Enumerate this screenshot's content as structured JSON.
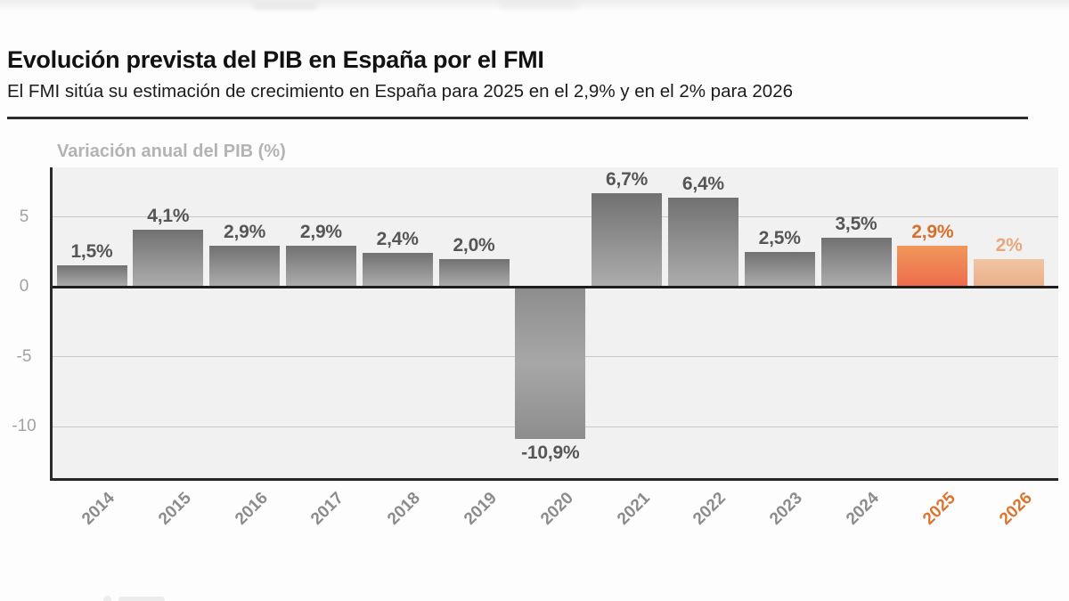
{
  "header": {
    "title": "Evolución prevista del PIB en España por el FMI",
    "subtitle": "El FMI sitúa su estimación de crecimiento en España para 2025 en el 2,9% y en el 2% para 2026"
  },
  "chart_data": {
    "type": "bar",
    "axis_title": "Variación anual del PIB (%)",
    "categories": [
      "2014",
      "2015",
      "2016",
      "2017",
      "2018",
      "2019",
      "2020",
      "2021",
      "2022",
      "2023",
      "2024",
      "2025",
      "2026"
    ],
    "values": [
      1.5,
      4.1,
      2.9,
      2.9,
      2.4,
      2.0,
      -10.9,
      6.7,
      6.4,
      2.5,
      3.5,
      2.9,
      2.0
    ],
    "value_labels": [
      "1,5%",
      "4,1%",
      "2,9%",
      "2,9%",
      "2,4%",
      "2,0%",
      "-10,9%",
      "6,7%",
      "6,4%",
      "2,5%",
      "3,5%",
      "2,9%",
      "2%"
    ],
    "forecast_years": [
      "2025",
      "2026"
    ],
    "y_ticks": [
      5,
      0,
      -5,
      -10
    ],
    "ylim": [
      -13.6,
      8.5
    ],
    "grid": true,
    "legend_position": "none",
    "colors": {
      "plot_bg": "#f1f1f1",
      "grid_line": "#c9c9c9",
      "zero_line": "#1d1d1d",
      "axis_title": "#b3b3b3",
      "tick_label": "#a2a2a2",
      "bar_gray_top": "#717171",
      "bar_gray_bottom": "#adadad",
      "bar_neg_edge": "#8d8d8d",
      "bar_neg_mid": "#a7a7a7",
      "bar_2025_top": "#f0975a",
      "bar_2025_bottom": "#ee6c4d",
      "bar_2026_top": "#efc5a3",
      "bar_2026_bottom": "#ecae8b",
      "value_label_gray": "#565656",
      "value_label_2025": "#d7702b",
      "value_label_2026": "#e8a77c",
      "x_label_gray": "#8c8c8c",
      "x_label_highlight": "#dd7430"
    }
  }
}
